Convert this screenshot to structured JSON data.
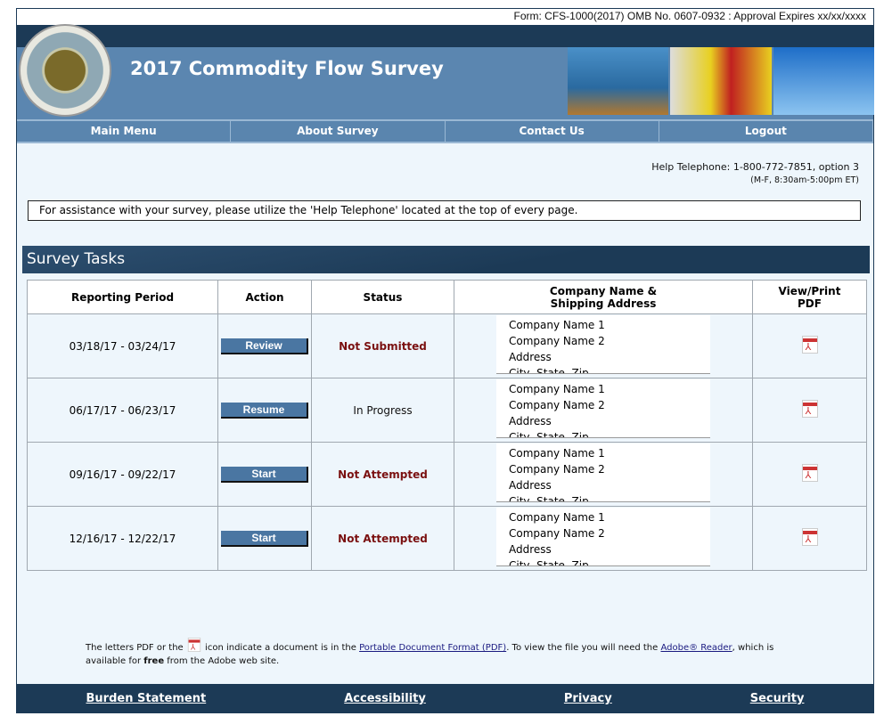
{
  "form_info": "Form: CFS-1000(2017) OMB No. 0607-0932 : Approval Expires  xx/xx/xxxx",
  "header": {
    "title": "2017 Commodity Flow Survey"
  },
  "nav": [
    "Main Menu",
    "About Survey",
    "Contact Us",
    "Logout"
  ],
  "help": {
    "line1": "Help Telephone: 1-800-772-7851, option 3",
    "line2": "(M-F, 8:30am-5:00pm ET)"
  },
  "assist": "For assistance with your survey, please utilize the 'Help Telephone' located at the top of every page.",
  "tasks_title": "Survey Tasks",
  "table": {
    "headers": [
      "Reporting Period",
      "Action",
      "Status",
      "Company Name &\nShipping Address",
      "View/Print PDF"
    ],
    "header_company_1": "Company Name &",
    "header_company_2": "Shipping Address",
    "header_pdf_1": "View/Print",
    "header_pdf_2": "PDF",
    "rows": [
      {
        "period": "03/18/17 - 03/24/17",
        "action": "Review",
        "status": "Not Submitted",
        "status_color": "#7a1010",
        "addr": [
          "Company Name 1",
          "Company Name 2",
          "Address",
          "City, State, Zip"
        ]
      },
      {
        "period": "06/17/17 - 06/23/17",
        "action": "Resume",
        "status": "In Progress",
        "status_color": "#111111",
        "addr": [
          "Company Name 1",
          "Company Name 2",
          "Address",
          "City, State, Zip"
        ]
      },
      {
        "period": "09/16/17 - 09/22/17",
        "action": "Start",
        "status": "Not Attempted",
        "status_color": "#7a1010",
        "addr": [
          "Company Name 1",
          "Company Name 2",
          "Address",
          "City, State, Zip"
        ]
      },
      {
        "period": "12/16/17 - 12/22/17",
        "action": "Start",
        "status": "Not Attempted",
        "status_color": "#7a1010",
        "addr": [
          "Company Name 1",
          "Company Name 2",
          "Address",
          "City, State, Zip"
        ]
      }
    ]
  },
  "note": {
    "t1": "The letters PDF or the ",
    "t2": " icon indicate a document is in the ",
    "link1": "Portable Document Format (PDF)",
    "t3": ". To view the file you will need the ",
    "link2": "Adobe® Reader",
    "t4": ", which is available for ",
    "bold": "free",
    "t5": " from the Adobe web site."
  },
  "footer": [
    "Burden Statement",
    "Accessibility",
    "Privacy",
    "Security"
  ],
  "colors": {
    "dark": "#1c3a56",
    "header": "#5b86b0",
    "button": "#4a76a2",
    "alert": "#7a1010"
  }
}
